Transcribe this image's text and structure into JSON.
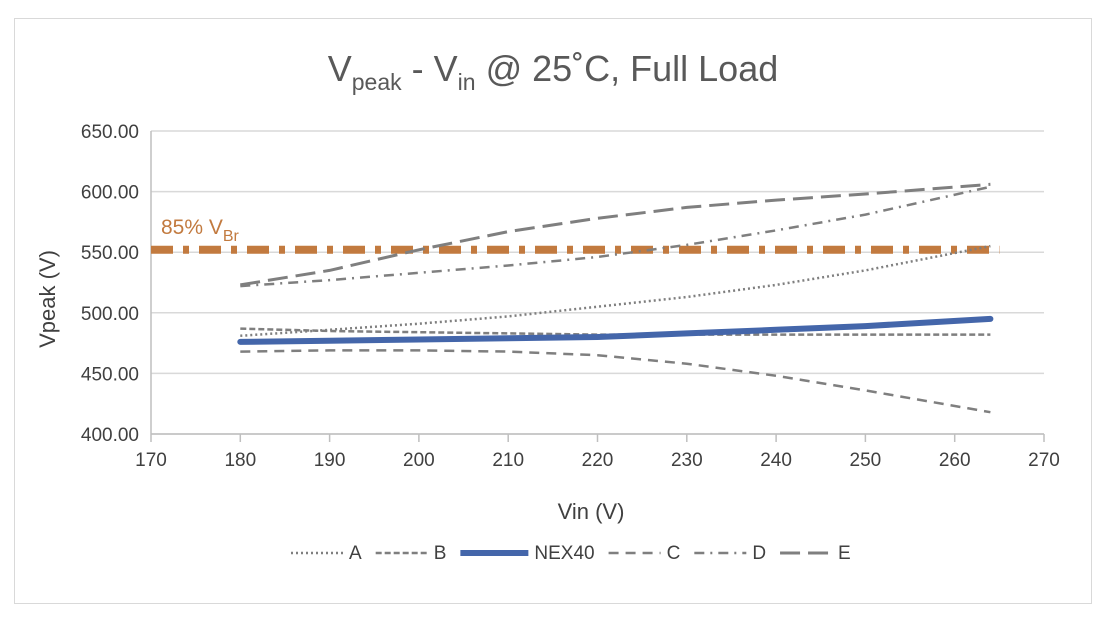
{
  "chart_data": {
    "type": "line",
    "title": {
      "main": "V",
      "sub1": "peak",
      "mid": " - V",
      "sub2": "in",
      "rest": " @ 25˚C, Full Load"
    },
    "xlabel": "Vin (V)",
    "ylabel": "Vpeak (V)",
    "xlim": [
      170,
      270
    ],
    "ylim": [
      400,
      650
    ],
    "xticks": [
      "170",
      "180",
      "190",
      "200",
      "210",
      "220",
      "230",
      "240",
      "250",
      "260",
      "270"
    ],
    "yticks": [
      "400.00",
      "450.00",
      "500.00",
      "550.00",
      "600.00",
      "650.00"
    ],
    "grid": "horizontal",
    "legend_position": "bottom",
    "x": [
      180,
      190,
      200,
      210,
      220,
      230,
      240,
      250,
      264
    ],
    "series": [
      {
        "name": "A",
        "style": "dotted",
        "color": "#7f7f7f",
        "values": [
          481,
          486,
          491,
          497,
          505,
          513,
          523,
          535,
          555
        ]
      },
      {
        "name": "B",
        "style": "short-dash",
        "color": "#7f7f7f",
        "values": [
          487,
          485,
          484,
          483,
          482,
          482,
          482,
          482,
          482
        ]
      },
      {
        "name": "NEX40",
        "style": "solid-thick",
        "color": "#4466aa",
        "values": [
          476,
          477,
          478,
          479,
          480,
          483,
          486,
          489,
          495
        ]
      },
      {
        "name": "C",
        "style": "dash",
        "color": "#7f7f7f",
        "values": [
          468,
          469,
          469,
          468,
          465,
          458,
          448,
          436,
          418
        ]
      },
      {
        "name": "D",
        "style": "dash-dot",
        "color": "#7f7f7f",
        "values": [
          522,
          527,
          533,
          539,
          546,
          556,
          568,
          581,
          604
        ]
      },
      {
        "name": "E",
        "style": "long-dash",
        "color": "#7f7f7f",
        "values": [
          523,
          535,
          552,
          567,
          578,
          587,
          593,
          598,
          606
        ]
      }
    ],
    "reference_line": {
      "label_main": "85% V",
      "label_sub": "Br",
      "value": 552,
      "x_range": [
        170,
        265
      ],
      "color": "#c27a3f"
    }
  }
}
